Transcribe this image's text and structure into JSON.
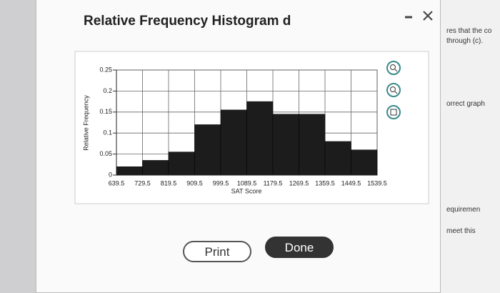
{
  "dialog": {
    "title": "Relative Frequency Histogram d",
    "buttons": [
      "Print",
      "Done"
    ]
  },
  "side_panel": {
    "lines": [
      "res that the co",
      "through (c).",
      "orrect graph",
      "equiremen",
      "meet this"
    ]
  },
  "chart_data": {
    "type": "histogram",
    "x_label": "SAT Score",
    "y_label": "Relative Frequency",
    "bins": [
      639.5,
      729.5,
      819.5,
      909.5,
      999.5,
      1089.5,
      1179.5,
      1269.5,
      1359.5,
      1449.5,
      1539.5
    ],
    "values": [
      0.02,
      0.035,
      0.055,
      0.12,
      0.155,
      0.175,
      0.145,
      0.145,
      0.08,
      0.06
    ],
    "color": "#1c1c1c",
    "xlim": [
      639.5,
      1539.5
    ],
    "xticks": [
      639.5,
      729.5,
      819.5,
      909.5,
      999.5,
      1089.5,
      1179.5,
      1269.5,
      1359.5,
      1449.5,
      1539.5
    ],
    "ylim": [
      0,
      0.25
    ],
    "yticks": [
      0,
      0.05,
      0.1,
      0.15,
      0.2,
      0.25
    ],
    "grid": true
  }
}
